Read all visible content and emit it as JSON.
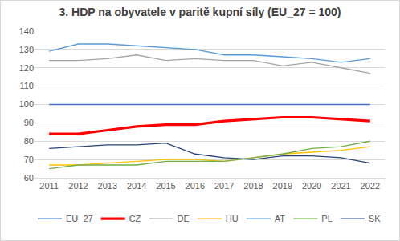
{
  "chart_data": {
    "type": "line",
    "title": "3. HDP na obyvatele v paritě kupní síly (EU_27 = 100)",
    "categories": [
      "2011",
      "2012",
      "2013",
      "2014",
      "2015",
      "2016",
      "2017",
      "2018",
      "2019",
      "2020",
      "2021",
      "2022"
    ],
    "series": [
      {
        "name": "EU_27",
        "color": "#4472c4",
        "values": [
          100,
          100,
          100,
          100,
          100,
          100,
          100,
          100,
          100,
          100,
          100,
          100
        ]
      },
      {
        "name": "CZ",
        "color": "#ff0000",
        "values": [
          84,
          84,
          86,
          88,
          89,
          89,
          91,
          92,
          93,
          93,
          92,
          91
        ]
      },
      {
        "name": "DE",
        "color": "#a5a5a5",
        "values": [
          124,
          124,
          125,
          127,
          124,
          125,
          124,
          124,
          121,
          123,
          120,
          117
        ]
      },
      {
        "name": "HU",
        "color": "#ffc000",
        "values": [
          67,
          67,
          68,
          69,
          70,
          70,
          69,
          71,
          73,
          74,
          75,
          77
        ]
      },
      {
        "name": "AT",
        "color": "#5b9bd5",
        "values": [
          129,
          133,
          133,
          132,
          131,
          130,
          127,
          127,
          126,
          125,
          123,
          125
        ]
      },
      {
        "name": "PL",
        "color": "#70ad47",
        "values": [
          65,
          67,
          67,
          67,
          69,
          69,
          69,
          71,
          73,
          76,
          77,
          80
        ]
      },
      {
        "name": "SK",
        "color": "#264478",
        "values": [
          76,
          77,
          78,
          78,
          79,
          73,
          71,
          70,
          72,
          72,
          71,
          68
        ]
      }
    ],
    "ylim": [
      60,
      140
    ],
    "yticks": [
      60,
      70,
      80,
      90,
      100,
      110,
      120,
      130,
      140
    ],
    "grid": true,
    "legend": "bottom"
  }
}
